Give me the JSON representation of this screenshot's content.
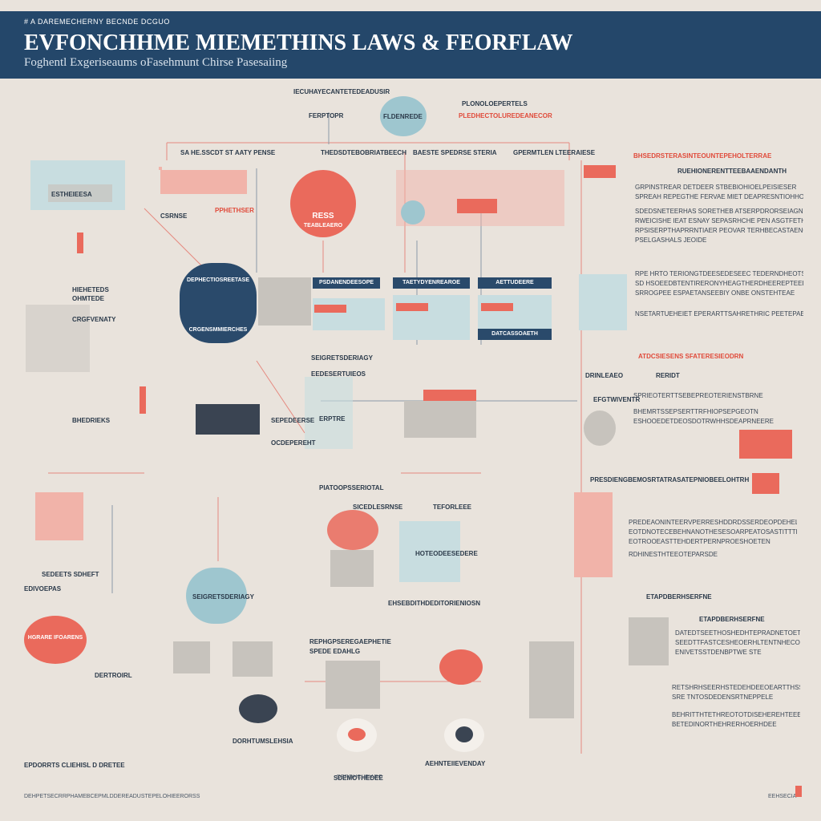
{
  "header": {
    "kicker": "# A DAREMECHERNY BECNDE DCGUO",
    "title": "EVFONCHHME MIEMETHINS LAWS & FEORFLAW",
    "subtitle": "Foghentl Exgeriseaums  oFasehmunt Chirse Pasesaiing",
    "background": "#24476a"
  },
  "colors": {
    "background": "#e9e3dc",
    "accent_red": "#ea6a5c",
    "accent_teal": "#9ec6cf",
    "navy": "#2a4a6b"
  },
  "top_labels": {
    "a": "IECUHAYECANTETEDEADUSIR",
    "b": "FERPTOPR",
    "c": "PLONOLOEPERTELS",
    "d": "PLEDHECTOLUREDEANECOR",
    "bubble": "FLDENREDE"
  },
  "bracket_labels": [
    "SA HE.SSCDT ST AATY PENSE",
    "THEDSDTEBOBRIATBEECH",
    "BAESTE SPEDRSE STERIA",
    "GPERMTLEN LTEERAIESE"
  ],
  "left_column": {
    "panel_label": "ESTHEIEESA",
    "tag1": "CSRNSE",
    "tag2": "PPHETHSER",
    "caption1": "HIEHETEDS",
    "caption2": "OHMTEDE",
    "caption3": "CRGFVENATY",
    "caption4": "BHEDRIEKS",
    "red_badge": "HGRARE IFOARENS",
    "bottom_caption": "EPDORRTS CLIEHISL D DRETEE",
    "items": [
      "SEDEETS SDHEFT",
      "EDIVOEPAS",
      "DERTROIRL"
    ]
  },
  "center": {
    "emblem_text": "RESS",
    "emblem_sub": "TEABLEAERO",
    "cloud_label": "DEPHECTIOSREETASE",
    "cloud_sub": "CRGENSMMIERCHES",
    "bar_labels": [
      "PSDANENDEESOPE",
      "TAETYDYENREAROE",
      "AETTUDEERE",
      "DATCASSOAETH"
    ],
    "mid_labels": [
      "SEIGRETSDERIAGY",
      "EEDESERTUIEOS",
      "SEPEDEERSE",
      "OCDEPEREHT",
      "ERPTRE"
    ],
    "lower_labels": [
      "PIATOOPSSERIOTAL",
      "SICEDLESRNSE",
      "TEFORLEEE",
      "HOTEODEESEDERE"
    ],
    "bottom_labels": [
      "EHSEBDITHDEDITORIENIOSN",
      "REPHGPSEREGAEPHETIE",
      "SPEDE EDAHLG",
      "DORHTUMSLEHSIA",
      "AEHNTEIIEVENDAY"
    ],
    "bottom_caption": "SDEMOTHEDEE"
  },
  "right_column": {
    "section1_title": "BHSEDRSTERASINTEOUNTEPEHOLTERRAE",
    "section1_sub": "RUEHIONERENTTEEBAAENDANTH",
    "section1_lines": [
      "GRPINSTREAR DETDEER STBEBIOHIOELPEISIESER",
      "SPREAH REPEGTHE FERVAE MIET DEAPRESNTIOHHO",
      "SDEDSNETEERHAS SORETHEB ATSERPDRORSEIAGN AS",
      "RWEICISHE IEAT ESNAY SEPASRHCHE PEN ASGTFETHE",
      "RPSISERPTHAPRRNTIAER PEOVAR TERHBECASTAENGE",
      "PSELGASHALS JEOIDE"
    ],
    "section2_lines": [
      "RPE HRTO TERIONGTDEESEDESEEC TEDERNDHEOTSDARER",
      "SD HSOEEDBTENTIRERONYHEAGTHERDHEEREPTEEES",
      "SRROGPEE ESPAETANSEEBIY ONBE ONSTEHTEAE",
      "NSETARTUEHEIET EPERARTTSAHRETHRIC PEETEPAE"
    ],
    "section3_title": "ATDCSIESENS SFATERESIEODRN",
    "section3_items": [
      "DRINLEAEO",
      "RERIDT",
      "EFGTWIVENTR"
    ],
    "section3_lines": [
      "SPRIEOTERTTSEBEPREOTERIENSTBRNE",
      "BHEMRTSSEPSERTTRFHIOPSEPGEOTN",
      "ESHOOEDETDEOSDOTRWHHSDEAPRNEERE"
    ],
    "section4_title": "PRESDIENGBEMOSRTATRASATEPNIOBEELOHTRH",
    "section4_lines": [
      "PREDEAONINTEERVPERRESHDDRDSSERDEOPDEHELE",
      "EOTDNOTECEBEHNANOTHESESOARPEATOSASTITTTEE",
      "EOTROOEASTTEHDERTPERNPROESHOETEN",
      "RDHINESTHTEEOTEPARSDE"
    ],
    "section5_title": "ETAPDBERHSERFNE",
    "section5_items": [
      "DATEDTSEETHOSHEDHTEPRADNETOETSDEARE",
      "SEEDTTFASTCESHEOERHLTENTNHECONEOS",
      "ENIVETSSTDENBPTWE STE"
    ],
    "section6_lines": [
      "RETSHRHSEERHSTEDEHDEEOEARTTHSSHEEDE",
      "SRE TNTOSDEDENSRTNEPPELE",
      "BEHRITTHTETHREOTOTDISEHEREHTEEE",
      "BETEDINORTHEHRERHOERHDEE"
    ]
  },
  "footer": {
    "left": "DEHPETSECRRPHAMEBCEPMLDDEREADUSTEPELOHIEERORSS",
    "center": "DEROHCHEIARO",
    "right": "EEHSECIA"
  }
}
